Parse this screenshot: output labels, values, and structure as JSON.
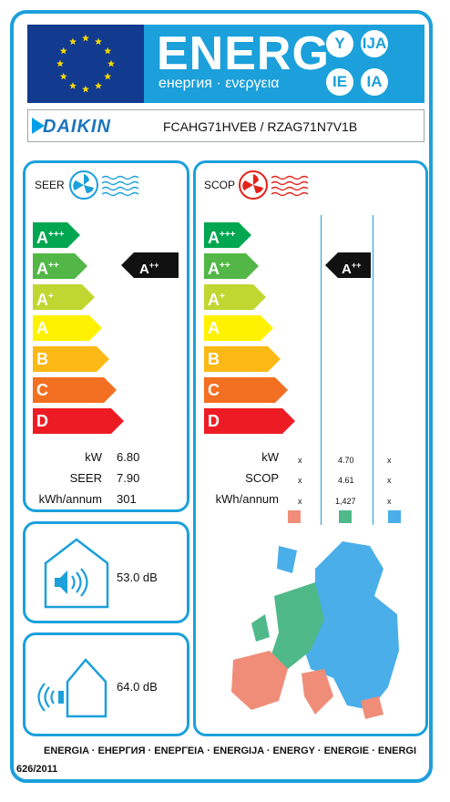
{
  "header": {
    "energ": "ENERG",
    "energ_sub": "енергия · ενεργεια",
    "lang": [
      "Y",
      "IJA",
      "IE",
      "IA"
    ],
    "colors": {
      "blue": "#1ba0db",
      "eu_blue": "#123a8f",
      "eu_star": "#f5d800"
    }
  },
  "brand": {
    "name": "DAIKIN",
    "model": "FCAHG71HVEB / RZAG71N7V1B",
    "logo_icon": "daikin-triangle-icon"
  },
  "classes": [
    {
      "letter": "A",
      "sup": "+++",
      "color": "#00a650"
    },
    {
      "letter": "A",
      "sup": "++",
      "color": "#52b747"
    },
    {
      "letter": "A",
      "sup": "+",
      "color": "#bfd730"
    },
    {
      "letter": "A",
      "sup": "",
      "color": "#fff200"
    },
    {
      "letter": "B",
      "sup": "",
      "color": "#fcb814"
    },
    {
      "letter": "C",
      "sup": "",
      "color": "#f36f21"
    },
    {
      "letter": "D",
      "sup": "",
      "color": "#ed1c24"
    }
  ],
  "cooling": {
    "title": "SEER",
    "icon": "cooling-fan-icon",
    "rating": {
      "letter": "A",
      "sup": "++"
    },
    "rows": [
      {
        "label": "kW",
        "value": "6.80"
      },
      {
        "label": "SEER",
        "value": "7.90"
      },
      {
        "label": "kWh/annum",
        "value": "301"
      }
    ]
  },
  "heating": {
    "title": "SCOP",
    "icon": "heating-fan-icon",
    "rating": {
      "letter": "A",
      "sup": "++"
    },
    "rows": [
      {
        "label": "kW",
        "values": [
          "x",
          "4.70",
          "x"
        ]
      },
      {
        "label": "SCOP",
        "values": [
          "x",
          "4.61",
          "x"
        ]
      },
      {
        "label": "kWh/annum",
        "values": [
          "x",
          "1,427",
          "x"
        ]
      }
    ],
    "zone_colors": [
      "#f08d78",
      "#4fb98a",
      "#4aaee8"
    ]
  },
  "noise": [
    {
      "value": "53.0 dB",
      "icon": "indoor-speaker-icon"
    },
    {
      "value": "64.0 dB",
      "icon": "outdoor-house-sound-icon"
    }
  ],
  "footer": {
    "languages": "ENERGIA · ЕНЕРГИЯ · ΕΝΕΡΓΕΙΑ · ENERGIJA · ENERGY · ENERGIE · ENERGI",
    "regulation": "626/2011"
  }
}
